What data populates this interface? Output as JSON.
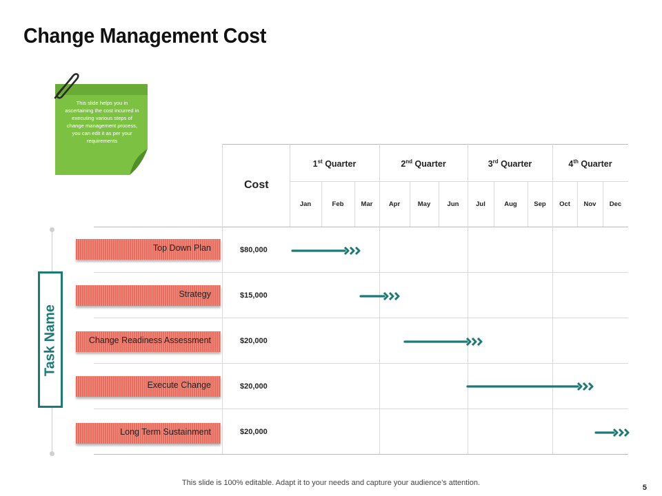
{
  "title": "Change Management Cost",
  "note": "This slide helps you in ascertaining the cost incurred in executing various steps of change management process, you can edit it as per your requirements",
  "table": {
    "cost_header": "Cost",
    "quarters": [
      {
        "num": "1",
        "sup": "st",
        "label": "Quarter"
      },
      {
        "num": "2",
        "sup": "nd",
        "label": "Quarter"
      },
      {
        "num": "3",
        "sup": "rd",
        "label": "Quarter"
      },
      {
        "num": "4",
        "sup": "th",
        "label": "Quarter"
      }
    ],
    "months": [
      "Jan",
      "Feb",
      "Mar",
      "Apr",
      "May",
      "Jun",
      "Jul",
      "Aug",
      "Sep",
      "Oct",
      "Nov",
      "Dec"
    ],
    "task_label": "Task Name",
    "tasks": [
      {
        "name": "Top Down Plan",
        "cost": "$80,000"
      },
      {
        "name": "Strategy",
        "cost": "$15,000"
      },
      {
        "name": "Change Readiness Assessment",
        "cost": "$20,000"
      },
      {
        "name": "Execute Change",
        "cost": "$20,000"
      },
      {
        "name": "Long Term Sustainment",
        "cost": "$20,000"
      }
    ]
  },
  "colors": {
    "accent": "#1b7a78",
    "task_bar": "#e86d5e",
    "note_green": "#7dc142",
    "grid": "#d9d9d9"
  },
  "footer": "This slide is 100% editable. Adapt it to your needs and capture your audience’s attention.",
  "page_number": "5"
}
